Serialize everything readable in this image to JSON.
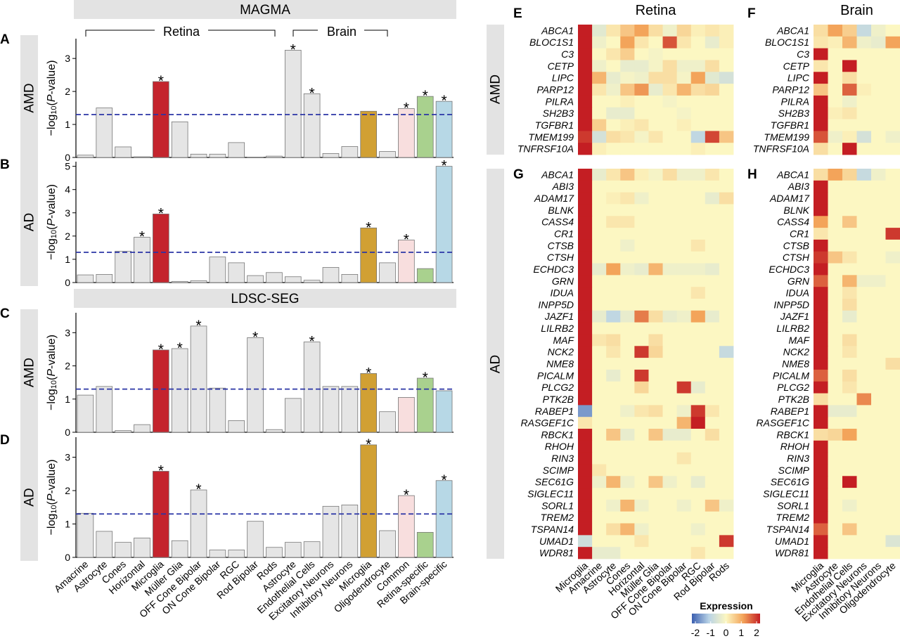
{
  "bar_panels": {
    "section_titles": [
      "MAGMA",
      "LDSC-SEG"
    ],
    "group_labels": [
      "Retina",
      "Brain"
    ],
    "ylabel_prefix": "−log",
    "ylabel_sub": "10",
    "ylabel_open": "(",
    "ylabel_italic": "P",
    "ylabel_close": "-value)",
    "threshold_color": "#2b35a6",
    "significance_mark": "*",
    "categories": [
      "Amacrine",
      "Astrocyte",
      "Cones",
      "Horizontal",
      "Microglia",
      "Müller Glia",
      "OFF Cone Bipolar",
      "ON Cone Bipolar",
      "RGC",
      "Rod Bipolar",
      "Rods",
      "Astrocyte",
      "Endothelial Cells",
      "Excitatory Neurons",
      "Inhibitory Neurons",
      "Microglia",
      "Oligodendrocyte",
      "Common",
      "Retina-specific",
      "Brain-specific"
    ],
    "bar_colors": [
      "#e5e5e5",
      "#e5e5e5",
      "#e5e5e5",
      "#e5e5e5",
      "#c4242d",
      "#e5e5e5",
      "#e5e5e5",
      "#e5e5e5",
      "#e5e5e5",
      "#e5e5e5",
      "#e5e5e5",
      "#e5e5e5",
      "#e5e5e5",
      "#e5e5e5",
      "#e5e5e5",
      "#d1a033",
      "#e5e5e5",
      "#f8dede",
      "#a9d18e",
      "#b7d8e6"
    ]
  },
  "chart_data": [
    {
      "type": "bar",
      "panel": "A",
      "section": "MAGMA",
      "row_label": "AMD",
      "ylim": [
        0,
        3.6
      ],
      "yticks": [
        0,
        1,
        2,
        3
      ],
      "threshold": 1.3,
      "values": [
        0.07,
        1.5,
        0.32,
        0.02,
        2.3,
        1.08,
        0.1,
        0.1,
        0.45,
        0.0,
        0.04,
        3.25,
        1.93,
        0.12,
        0.33,
        1.4,
        0.18,
        1.48,
        1.85,
        1.7
      ],
      "significant": [
        4,
        11,
        12,
        17,
        18,
        19
      ]
    },
    {
      "type": "bar",
      "panel": "B",
      "section": "MAGMA",
      "row_label": "AD",
      "ylim": [
        0,
        5.2
      ],
      "yticks": [
        0,
        1,
        2,
        3,
        4,
        5
      ],
      "threshold": 1.3,
      "values": [
        0.33,
        0.35,
        1.35,
        1.95,
        2.95,
        0.05,
        0.08,
        1.1,
        0.85,
        0.3,
        0.43,
        0.25,
        0.1,
        0.65,
        0.35,
        2.35,
        0.85,
        1.83,
        0.6,
        5.0
      ],
      "significant": [
        3,
        4,
        15,
        17,
        19
      ]
    },
    {
      "type": "bar",
      "panel": "C",
      "section": "LDSC-SEG",
      "row_label": "AMD",
      "ylim": [
        0,
        3.6
      ],
      "yticks": [
        0,
        1,
        2,
        3
      ],
      "threshold": 1.3,
      "values": [
        1.12,
        1.38,
        0.05,
        0.23,
        2.48,
        2.52,
        3.2,
        1.33,
        0.35,
        2.85,
        0.08,
        1.02,
        2.72,
        1.38,
        1.38,
        1.77,
        0.62,
        1.05,
        1.63,
        1.25
      ],
      "significant": [
        4,
        5,
        6,
        9,
        12,
        15,
        18
      ]
    },
    {
      "type": "bar",
      "panel": "D",
      "section": "LDSC-SEG",
      "row_label": "AD",
      "ylim": [
        0,
        3.6
      ],
      "yticks": [
        0,
        1,
        2,
        3
      ],
      "threshold": 1.3,
      "values": [
        1.32,
        0.78,
        0.45,
        0.58,
        2.58,
        0.5,
        2.02,
        0.22,
        0.22,
        1.08,
        0.3,
        0.45,
        0.47,
        1.53,
        1.57,
        3.37,
        0.8,
        1.85,
        0.75,
        2.3
      ],
      "significant": [
        4,
        6,
        15,
        17,
        19
      ]
    },
    {
      "type": "heatmap",
      "panel": "E",
      "tissue": "Retina",
      "row_label": "AMD",
      "rows": [
        "ABCA1",
        "BLOC1S1",
        "C3",
        "CETP",
        "LIPC",
        "PARP12",
        "PILRA",
        "SH2B3",
        "TGFBR1",
        "TMEM199",
        "TNFRSF10A"
      ],
      "columns": [
        "Microglia",
        "Amacrine",
        "Astrocyte",
        "Cones",
        "Horizontal",
        "Müller Glia",
        "OFF Cone Bipolar",
        "ON Cone Bipolar",
        "RGC",
        "Rod Bipolar",
        "Rods"
      ],
      "values": [
        [
          2,
          -0.4,
          0.2,
          0.6,
          1.0,
          0.3,
          -0.2,
          0.4,
          0.1,
          0.2,
          0.1
        ],
        [
          2,
          -0.2,
          0.0,
          1.0,
          0.2,
          0.0,
          1.6,
          0.2,
          0.0,
          -0.3,
          0.1
        ],
        [
          2,
          0.0,
          0.2,
          0.5,
          0.0,
          -0.1,
          0.0,
          0.0,
          0.0,
          0.0,
          0.0
        ],
        [
          2,
          -0.2,
          0.0,
          -0.3,
          -0.3,
          -0.1,
          0.3,
          -0.2,
          -0.2,
          0.3,
          0.0
        ],
        [
          2,
          0.8,
          -0.3,
          -0.1,
          -0.2,
          0.3,
          0.3,
          -0.1,
          1.0,
          -0.4,
          -0.6
        ],
        [
          2,
          0.2,
          -0.2,
          0.6,
          1.1,
          -0.3,
          0.2,
          0.8,
          0.3,
          0.4,
          0.0
        ],
        [
          2,
          0.0,
          0.0,
          0.1,
          0.0,
          0.0,
          -0.1,
          0.0,
          0.0,
          0.0,
          0.0
        ],
        [
          2,
          0.0,
          -0.3,
          -0.3,
          0.0,
          0.0,
          0.0,
          -0.1,
          0.0,
          0.0,
          0.0
        ],
        [
          2,
          0.5,
          0.0,
          0.1,
          0.2,
          0.0,
          0.0,
          0.1,
          0.0,
          0.0,
          0.0
        ],
        [
          1.8,
          -0.6,
          0.3,
          0.2,
          -0.1,
          0.2,
          0.0,
          0.0,
          -0.9,
          1.7,
          0.6
        ],
        [
          2,
          0.1,
          0.0,
          0.0,
          0.0,
          0.0,
          0.0,
          0.0,
          0.1,
          0.0,
          0.0
        ]
      ]
    },
    {
      "type": "heatmap",
      "panel": "F",
      "tissue": "Brain",
      "row_label": "AMD",
      "rows": [
        "ABCA1",
        "BLOC1S1",
        "C3",
        "CETP",
        "LIPC",
        "PARP12",
        "PILRA",
        "SH2B3",
        "TGFBR1",
        "TMEM199",
        "TNFRSF10A"
      ],
      "columns": [
        "Microglia",
        "Astrocyte",
        "Endothelial Cells",
        "Excitatory Neurons",
        "Inhibitory Neurons",
        "Oligodendrocyte"
      ],
      "values": [
        [
          0.3,
          1.0,
          0.5,
          -0.8,
          -0.2,
          0.0
        ],
        [
          0.2,
          0.1,
          0.8,
          -0.2,
          -0.3,
          1.0
        ],
        [
          2,
          0.0,
          0.0,
          0.0,
          0.0,
          0.0
        ],
        [
          0.2,
          0.0,
          2,
          0.0,
          0.0,
          0.0
        ],
        [
          2,
          0.0,
          0.3,
          0.0,
          0.0,
          0.0
        ],
        [
          0.6,
          0.0,
          1.5,
          0.1,
          0.0,
          0.0
        ],
        [
          2,
          0.0,
          -0.2,
          0.0,
          0.0,
          0.0
        ],
        [
          2,
          0.1,
          0.2,
          0.0,
          0.0,
          0.0
        ],
        [
          2,
          0.0,
          0.0,
          0.0,
          0.0,
          0.0
        ],
        [
          1.6,
          -0.2,
          0.1,
          -0.6,
          0.0,
          -0.2
        ],
        [
          0.3,
          0.0,
          2,
          0.0,
          0.0,
          0.0
        ]
      ]
    },
    {
      "type": "heatmap",
      "panel": "G",
      "tissue": "Retina",
      "row_label": "AD",
      "rows": [
        "ABCA1",
        "ABI3",
        "ADAM17",
        "BLNK",
        "CASS4",
        "CR1",
        "CTSB",
        "CTSH",
        "ECHDC3",
        "GRN",
        "IDUA",
        "INPP5D",
        "JAZF1",
        "LILRB2",
        "MAF",
        "NCK2",
        "NME8",
        "PICALM",
        "PLCG2",
        "PTK2B",
        "RABEP1",
        "RASGEF1C",
        "RBCK1",
        "RHOH",
        "RIN3",
        "SCIMP",
        "SEC61G",
        "SIGLEC11",
        "SORL1",
        "TREM2",
        "TSPAN14",
        "UMAD1",
        "WDR81"
      ],
      "columns": [
        "Microglia",
        "Amacrine",
        "Astrocyte",
        "Cones",
        "Horizontal",
        "Müller Glia",
        "OFF Cone Bipolar",
        "ON Cone Bipolar",
        "RGC",
        "Rod Bipolar",
        "Rods"
      ],
      "values": [
        [
          2,
          -0.3,
          0.2,
          0.6,
          0.1,
          -0.1,
          0.3,
          -0.2,
          -0.2,
          0.2,
          0.0
        ],
        [
          2,
          0.0,
          0.0,
          0.0,
          0.0,
          0.0,
          0.0,
          0.0,
          0.0,
          0.0,
          0.0
        ],
        [
          2,
          0.0,
          0.1,
          0.2,
          -0.2,
          0.0,
          0.0,
          0.0,
          0.0,
          -0.3,
          0.3
        ],
        [
          2,
          0.0,
          0.0,
          0.0,
          0.0,
          0.0,
          0.0,
          0.0,
          0.0,
          0.0,
          0.0
        ],
        [
          2,
          0.0,
          0.2,
          0.2,
          0.0,
          0.0,
          0.0,
          0.0,
          0.0,
          0.0,
          0.0
        ],
        [
          2,
          0.0,
          0.0,
          0.0,
          0.0,
          0.0,
          0.0,
          0.0,
          0.0,
          0.0,
          0.0
        ],
        [
          2,
          0.0,
          0.0,
          -0.2,
          0.0,
          0.0,
          0.0,
          0.0,
          0.2,
          0.0,
          0.0
        ],
        [
          2,
          0.0,
          0.0,
          0.0,
          0.0,
          0.0,
          0.0,
          0.0,
          0.0,
          0.0,
          0.0
        ],
        [
          2,
          -0.3,
          1.0,
          -0.2,
          -0.3,
          0.8,
          -0.2,
          -0.2,
          -0.2,
          -0.3,
          0.0
        ],
        [
          2,
          0.0,
          0.0,
          0.0,
          0.0,
          0.0,
          0.0,
          0.0,
          0.0,
          0.0,
          0.0
        ],
        [
          2,
          0.0,
          0.0,
          0.0,
          0.0,
          0.0,
          0.0,
          0.0,
          0.2,
          0.0,
          0.0
        ],
        [
          2,
          0.0,
          0.0,
          0.0,
          0.0,
          0.0,
          0.0,
          0.0,
          0.0,
          0.0,
          0.0
        ],
        [
          2,
          -0.3,
          -0.9,
          -0.3,
          1.3,
          0.3,
          -0.3,
          -0.2,
          1.0,
          -0.3,
          0.0
        ],
        [
          2,
          0.0,
          0.0,
          0.0,
          0.0,
          0.0,
          0.0,
          0.0,
          0.0,
          0.0,
          0.0
        ],
        [
          2,
          0.2,
          0.3,
          0.0,
          0.0,
          0.3,
          0.0,
          0.0,
          0.0,
          0.0,
          0.0
        ],
        [
          2,
          0.0,
          0.2,
          0.0,
          1.8,
          0.4,
          0.0,
          0.0,
          0.0,
          0.0,
          -0.8
        ],
        [
          2,
          0.0,
          0.0,
          0.0,
          0.0,
          0.0,
          0.0,
          0.0,
          0.0,
          0.0,
          0.0
        ],
        [
          2,
          0.0,
          -0.3,
          0.0,
          1.8,
          0.0,
          0.0,
          0.0,
          0.0,
          0.0,
          0.0
        ],
        [
          2,
          0.0,
          0.0,
          0.0,
          0.4,
          0.0,
          0.0,
          1.8,
          -0.3,
          0.0,
          0.0
        ],
        [
          2,
          0.0,
          0.0,
          0.0,
          0.0,
          0.0,
          0.0,
          0.0,
          0.0,
          0.0,
          0.0
        ],
        [
          -1.5,
          0.0,
          0.0,
          -0.2,
          0.2,
          0.3,
          0.0,
          -0.2,
          1.8,
          0.2,
          0.0
        ],
        [
          0.2,
          0.0,
          0.0,
          0.0,
          0.0,
          0.0,
          0.0,
          0.8,
          2,
          0.0,
          0.0
        ],
        [
          2,
          0.0,
          0.6,
          -0.3,
          0.0,
          0.6,
          -0.3,
          -0.3,
          0.0,
          0.3,
          0.0
        ],
        [
          2,
          0.0,
          0.0,
          0.0,
          0.0,
          0.0,
          0.0,
          0.0,
          0.0,
          0.0,
          0.0
        ],
        [
          2,
          0.0,
          0.0,
          0.0,
          0.0,
          0.0,
          0.0,
          0.2,
          0.0,
          0.0,
          0.0
        ],
        [
          2,
          0.2,
          0.0,
          0.0,
          0.0,
          0.0,
          0.0,
          0.0,
          0.0,
          0.0,
          0.0
        ],
        [
          2,
          -0.2,
          0.8,
          -0.2,
          0.0,
          0.6,
          -0.2,
          0.0,
          -0.3,
          0.0,
          0.0
        ],
        [
          2,
          0.0,
          0.0,
          0.0,
          0.0,
          0.0,
          0.0,
          0.0,
          0.0,
          0.0,
          0.0
        ],
        [
          2,
          0.0,
          -0.2,
          0.8,
          -0.2,
          0.0,
          0.0,
          -0.2,
          0.0,
          0.6,
          -0.2
        ],
        [
          2,
          0.0,
          0.0,
          0.0,
          0.0,
          0.0,
          0.0,
          0.0,
          0.0,
          0.0,
          0.0
        ],
        [
          2,
          0.0,
          0.3,
          0.8,
          -0.2,
          0.0,
          0.0,
          0.0,
          -0.2,
          0.0,
          0.0
        ],
        [
          -0.7,
          0.0,
          0.0,
          0.0,
          0.2,
          0.0,
          0.0,
          0.0,
          0.0,
          0.0,
          1.8
        ],
        [
          2,
          -0.3,
          -0.3,
          0.0,
          0.0,
          0.0,
          0.0,
          0.0,
          0.2,
          0.0,
          0.0
        ]
      ]
    },
    {
      "type": "heatmap",
      "panel": "H",
      "tissue": "Brain",
      "row_label": "AD",
      "rows": [
        "ABCA1",
        "ABI3",
        "ADAM17",
        "BLNK",
        "CASS4",
        "CR1",
        "CTSB",
        "CTSH",
        "ECHDC3",
        "GRN",
        "IDUA",
        "INPP5D",
        "JAZF1",
        "LILRB2",
        "MAF",
        "NCK2",
        "NME8",
        "PICALM",
        "PLCG2",
        "PTK2B",
        "RABEP1",
        "RASGEF1C",
        "RBCK1",
        "RHOH",
        "RIN3",
        "SCIMP",
        "SEC61G",
        "SIGLEC11",
        "SORL1",
        "TREM2",
        "TSPAN14",
        "UMAD1",
        "WDR81"
      ],
      "columns": [
        "Microglia",
        "Astrocyte",
        "Endothelial Cells",
        "Excitatory Neurons",
        "Inhibitory Neurons",
        "Oligodendrocyte"
      ],
      "values": [
        [
          0.3,
          1.0,
          0.4,
          -0.8,
          -0.2,
          0.0
        ],
        [
          2,
          0.0,
          0.0,
          0.0,
          0.0,
          0.0
        ],
        [
          2,
          0.0,
          0.0,
          0.0,
          0.0,
          0.0
        ],
        [
          2,
          0.0,
          0.0,
          0.0,
          0.0,
          0.0
        ],
        [
          1.0,
          0.0,
          0.6,
          0.0,
          0.0,
          0.0
        ],
        [
          0.2,
          0.0,
          0.0,
          0.0,
          0.0,
          1.8
        ],
        [
          2,
          0.0,
          0.0,
          0.0,
          0.0,
          0.0
        ],
        [
          1.8,
          0.6,
          0.2,
          0.0,
          0.0,
          -0.2
        ],
        [
          2,
          0.0,
          0.0,
          0.0,
          0.0,
          0.0
        ],
        [
          1.5,
          0.0,
          0.8,
          -0.2,
          -0.2,
          0.0
        ],
        [
          2,
          0.0,
          0.2,
          0.0,
          0.0,
          0.0
        ],
        [
          2,
          0.0,
          0.3,
          0.0,
          0.0,
          0.0
        ],
        [
          2,
          0.0,
          -0.3,
          0.0,
          0.0,
          0.0
        ],
        [
          2,
          0.0,
          0.0,
          0.0,
          0.0,
          0.0
        ],
        [
          2,
          0.0,
          0.3,
          0.0,
          0.0,
          0.0
        ],
        [
          2,
          0.0,
          0.2,
          0.0,
          0.0,
          0.0
        ],
        [
          2,
          0.0,
          0.0,
          0.0,
          0.0,
          0.3
        ],
        [
          1.5,
          0.0,
          0.3,
          0.0,
          0.0,
          0.0
        ],
        [
          2,
          0.0,
          0.2,
          0.0,
          0.0,
          0.0
        ],
        [
          0.3,
          0.0,
          0.0,
          1.2,
          0.0,
          0.0
        ],
        [
          2,
          -0.3,
          -0.3,
          0.0,
          0.0,
          0.0
        ],
        [
          2,
          0.0,
          0.0,
          0.0,
          0.0,
          0.0
        ],
        [
          0.3,
          0.4,
          1.0,
          0.0,
          0.0,
          0.0
        ],
        [
          2,
          0.0,
          0.0,
          0.0,
          0.0,
          0.0
        ],
        [
          2,
          0.0,
          0.0,
          0.0,
          0.0,
          0.0
        ],
        [
          2,
          0.0,
          0.0,
          0.0,
          0.0,
          0.0
        ],
        [
          2,
          0.0,
          2,
          0.0,
          0.0,
          0.0
        ],
        [
          2,
          0.0,
          0.0,
          0.0,
          0.0,
          0.0
        ],
        [
          2,
          0.0,
          -0.2,
          0.0,
          0.0,
          0.0
        ],
        [
          2,
          0.0,
          0.0,
          0.0,
          0.0,
          0.0
        ],
        [
          1.5,
          0.0,
          0.6,
          0.0,
          0.0,
          0.0
        ],
        [
          2,
          0.0,
          0.0,
          0.0,
          0.0,
          -0.5
        ],
        [
          2,
          0.0,
          0.0,
          0.0,
          0.0,
          0.0
        ]
      ]
    }
  ],
  "heatmap_legend": {
    "title": "Expression",
    "ticks": [
      "-2",
      "-1",
      "0",
      "1",
      "2"
    ],
    "colors": [
      "#3b5fb0",
      "#b9d3e6",
      "#fcf7c2",
      "#f3a45a",
      "#c41e23"
    ]
  }
}
